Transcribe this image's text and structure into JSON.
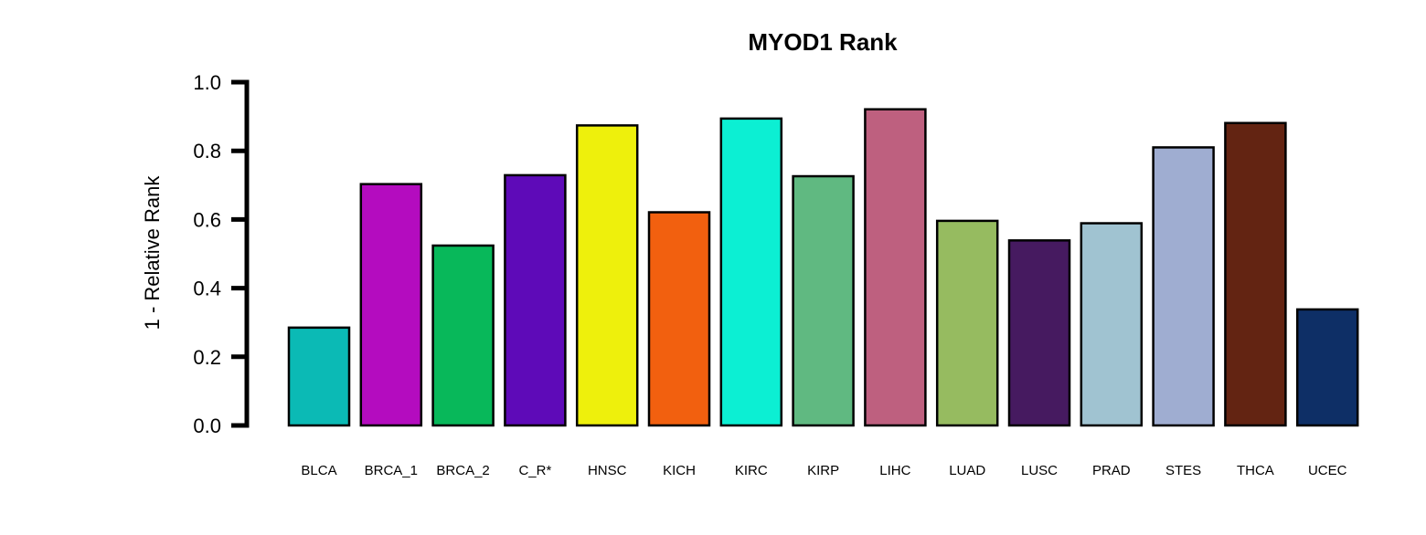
{
  "chart_data": {
    "type": "bar",
    "title": "MYOD1 Rank",
    "xlabel": "",
    "ylabel": "1 - Relative Rank",
    "ylim": [
      0,
      1
    ],
    "yticks": [
      "0.0",
      "0.2",
      "0.4",
      "0.6",
      "0.8",
      "1.0"
    ],
    "categories": [
      "BLCA",
      "BRCA_1",
      "BRCA_2",
      "C_R*",
      "HNSC",
      "KICH",
      "KIRC",
      "KIRP",
      "LIHC",
      "LUAD",
      "LUSC",
      "PRAD",
      "STES",
      "THCA",
      "UCEC"
    ],
    "values": [
      0.285,
      0.703,
      0.524,
      0.729,
      0.874,
      0.621,
      0.894,
      0.726,
      0.921,
      0.596,
      0.539,
      0.589,
      0.81,
      0.881,
      0.338
    ],
    "colors": [
      "#0bbab5",
      "#b40cbf",
      "#08b85a",
      "#5e0ab8",
      "#eef00c",
      "#f2600f",
      "#0cefd3",
      "#60b981",
      "#be607f",
      "#96bb60",
      "#461a60",
      "#a0c3d1",
      "#9fadd1",
      "#632412",
      "#0e2f66"
    ],
    "grid": false,
    "legend": "none"
  }
}
